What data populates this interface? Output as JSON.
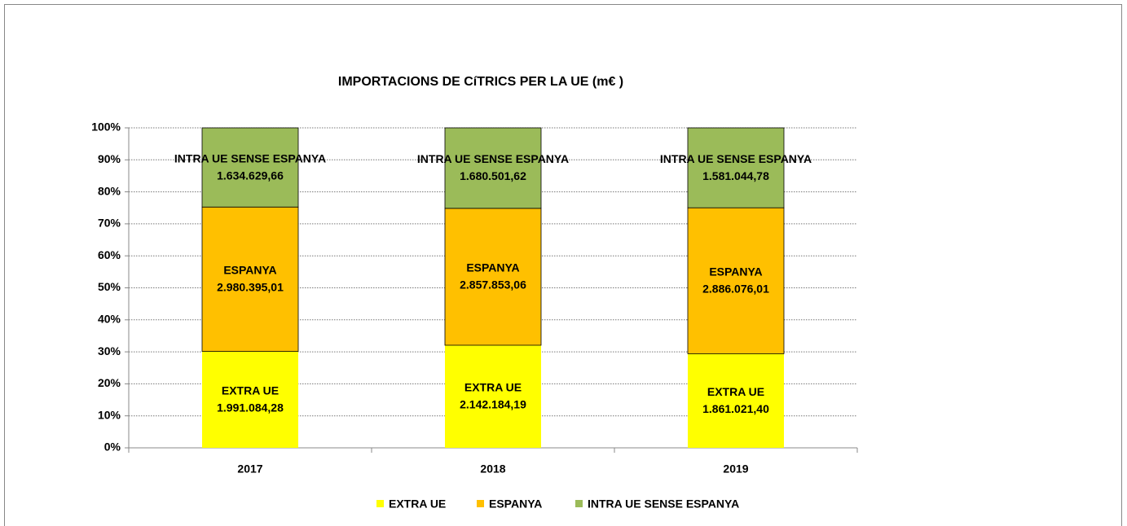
{
  "chart_data": {
    "type": "bar",
    "stacking": "percent",
    "title": "IMPORTACIONS DE CíTRICS PER LA UE (m€ )",
    "categories": [
      "2017",
      "2018",
      "2019"
    ],
    "series": [
      {
        "name": "EXTRA UE",
        "color": "#ffff00",
        "values": [
          1991084.28,
          2142184.19,
          1861021.4
        ],
        "value_labels": [
          "1.991.084,28",
          "2.142.184,19",
          "1.861.021,40"
        ]
      },
      {
        "name": "ESPANYA",
        "color": "#ffc000",
        "values": [
          2980395.01,
          2857853.06,
          2886076.01
        ],
        "value_labels": [
          "2.980.395,01",
          "2.857.853,06",
          "2.886.076,01"
        ]
      },
      {
        "name": "INTRA UE SENSE ESPANYA",
        "color": "#9bbb59",
        "values": [
          1634629.66,
          1680501.62,
          1581044.78
        ],
        "value_labels": [
          "1.634.629,66",
          "1.680.501,62",
          "1.581.044,78"
        ]
      }
    ],
    "ylim": [
      0,
      100
    ],
    "yticks": [
      {
        "value": 0,
        "label": "0%"
      },
      {
        "value": 10,
        "label": "10%"
      },
      {
        "value": 20,
        "label": "20%"
      },
      {
        "value": 30,
        "label": "30%"
      },
      {
        "value": 40,
        "label": "40%"
      },
      {
        "value": 50,
        "label": "50%"
      },
      {
        "value": 60,
        "label": "60%"
      },
      {
        "value": 70,
        "label": "70%"
      },
      {
        "value": 80,
        "label": "80%"
      },
      {
        "value": 90,
        "label": "90%"
      },
      {
        "value": 100,
        "label": "100%"
      }
    ],
    "grid": true,
    "legend": "bottom"
  }
}
